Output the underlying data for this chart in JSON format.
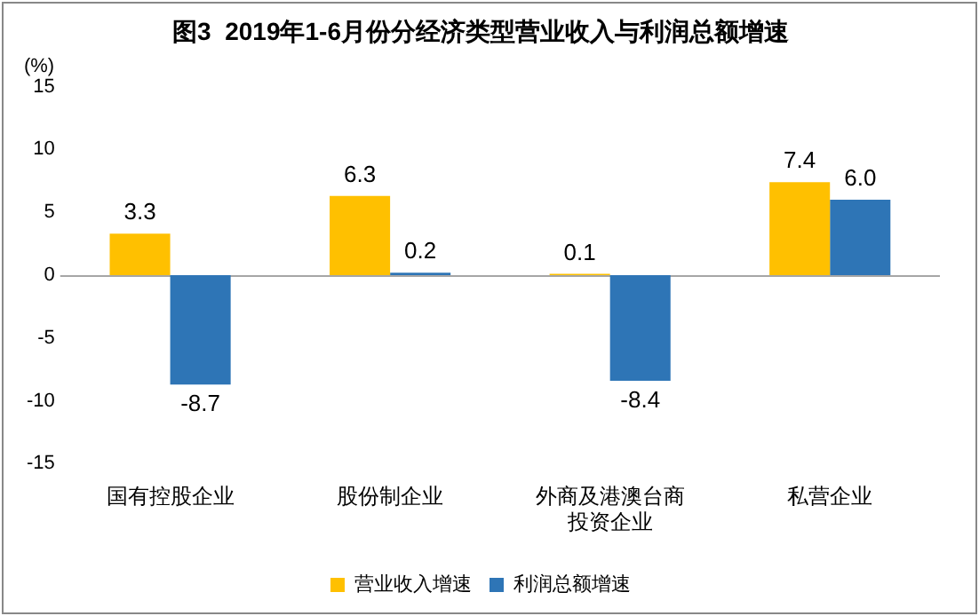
{
  "chart_data": {
    "type": "bar",
    "title": "图3  2019年1-6月份分经济类型营业收入与利润总额增速",
    "ylabel": "(%)",
    "categories": [
      "国有控股企业",
      "股份制企业",
      "外商及港澳台商投资企业",
      "私营企业"
    ],
    "series": [
      {
        "name": "营业收入增速",
        "color": "#ffc000",
        "values": [
          3.3,
          6.3,
          0.1,
          7.4
        ],
        "value_labels": [
          "3.3",
          "6.3",
          "0.1",
          "7.4"
        ]
      },
      {
        "name": "利润总额增速",
        "color": "#2e75b6",
        "values": [
          -8.7,
          0.2,
          -8.4,
          6.0
        ],
        "value_labels": [
          "-8.7",
          "0.2",
          "-8.4",
          "6.0"
        ]
      }
    ],
    "ylim": [
      -15,
      15
    ],
    "yticks": [
      -15,
      -10,
      -5,
      0,
      5,
      10,
      15
    ],
    "ref_lines": [
      {
        "axis": "y",
        "value": 0,
        "color": "#a6a6a6"
      }
    ],
    "grid": false,
    "legend": "bottom"
  }
}
